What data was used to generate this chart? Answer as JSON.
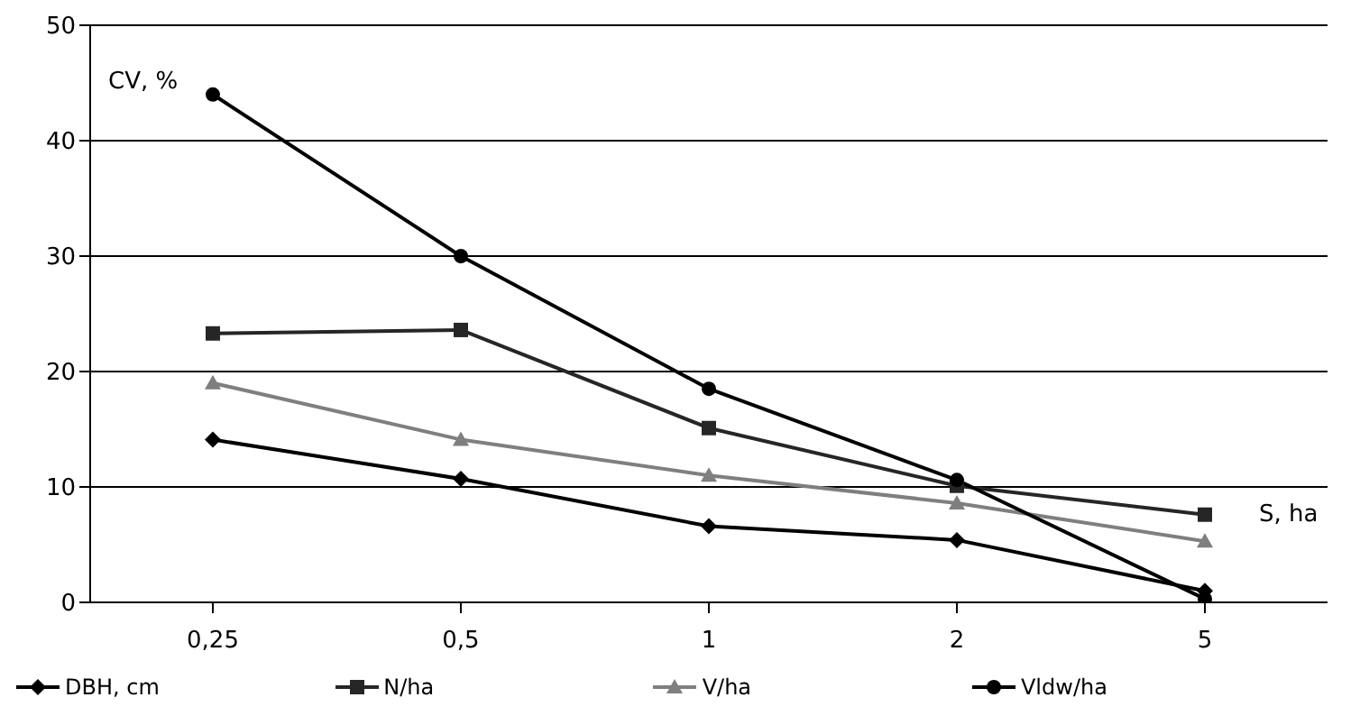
{
  "chart_data": {
    "type": "line",
    "xlabel": "S, ha",
    "ylabel": "CV, %",
    "categories": [
      "0,25",
      "0,5",
      "1",
      "2",
      "5"
    ],
    "series": [
      {
        "name": "DBH, cm",
        "color": "#000000",
        "marker": "diamond",
        "values": [
          14.1,
          10.7,
          6.6,
          5.4,
          1.0
        ]
      },
      {
        "name": "N/ha",
        "color": "#262626",
        "marker": "square",
        "values": [
          23.3,
          23.6,
          15.1,
          10.1,
          7.6
        ]
      },
      {
        "name": "V/ha",
        "color": "#7f7f7f",
        "marker": "triangle",
        "values": [
          19,
          14.1,
          11,
          8.6,
          5.3
        ]
      },
      {
        "name": "Vldw/ha",
        "color": "#000000",
        "marker": "circle",
        "values": [
          44,
          30,
          18.5,
          10.6,
          0.3
        ]
      }
    ],
    "ylim": [
      0,
      50
    ],
    "yticks": [
      0,
      10,
      20,
      30,
      40,
      50
    ],
    "grid": "y",
    "legend": "bottom",
    "line_style": "solid"
  }
}
